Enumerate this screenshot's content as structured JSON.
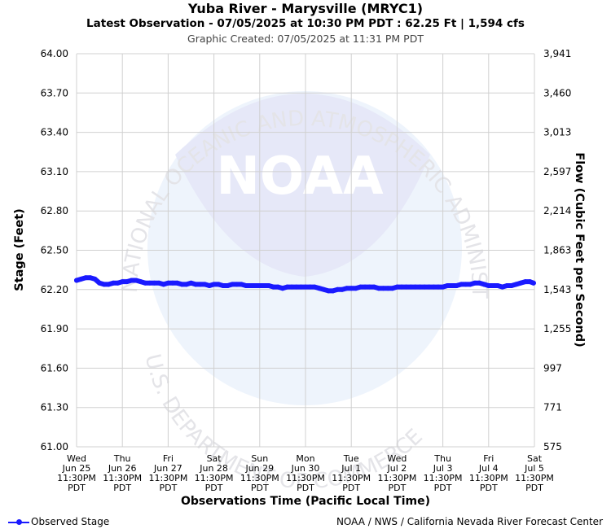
{
  "header": {
    "title": "Yuba River - Marysville (MRYC1)",
    "subtitle": "Latest Observation - 07/05/2025 at 10:30 PM PDT : 62.25 Ft | 1,594 cfs",
    "created": "Graphic Created: 07/05/2025 at 11:31 PM PDT"
  },
  "watermark": {
    "logo_text": "NOAA",
    "ring_top": "NATIONAL OCEANIC AND ATMOSPHERIC ADMINISTRATION",
    "ring_bottom": "U.S. DEPARTMENT OF COMMERCE"
  },
  "legend": {
    "label": "Observed Stage",
    "color": "#1a1aff"
  },
  "credit": "NOAA / NWS / California Nevada River Forecast Center",
  "chart_data": {
    "type": "line",
    "ylabel": "Stage (Feet)",
    "y2label": "Flow (Cubic Feet per Second)",
    "xlabel": "Observations Time (Pacific Local Time)",
    "ylim": [
      61.0,
      64.0
    ],
    "yticks": [
      "64.00",
      "63.70",
      "63.40",
      "63.10",
      "62.80",
      "62.50",
      "62.20",
      "61.90",
      "61.60",
      "61.30",
      "61.00"
    ],
    "y2ticks": [
      "3,941",
      "3,460",
      "3,013",
      "2,597",
      "2,214",
      "1,863",
      "1,543",
      "1,255",
      "997",
      "771",
      "575"
    ],
    "xticks": [
      [
        "Wed",
        "Jun 25",
        "11:30PM",
        "PDT"
      ],
      [
        "Thu",
        "Jun 26",
        "11:30PM",
        "PDT"
      ],
      [
        "Fri",
        "Jun 27",
        "11:30PM",
        "PDT"
      ],
      [
        "Sat",
        "Jun 28",
        "11:30PM",
        "PDT"
      ],
      [
        "Sun",
        "Jun 29",
        "11:30PM",
        "PDT"
      ],
      [
        "Mon",
        "Jun 30",
        "11:30PM",
        "PDT"
      ],
      [
        "Tue",
        "Jul 1",
        "11:30PM",
        "PDT"
      ],
      [
        "Wed",
        "Jul 2",
        "11:30PM",
        "PDT"
      ],
      [
        "Thu",
        "Jul 3",
        "11:30PM",
        "PDT"
      ],
      [
        "Fri",
        "Jul 4",
        "11:30PM",
        "PDT"
      ],
      [
        "Sat",
        "Jul 5",
        "11:30PM",
        "PDT"
      ]
    ],
    "grid": true,
    "series": [
      {
        "name": "Observed Stage",
        "color": "#1a1aff",
        "x": [
          0,
          0.1,
          0.2,
          0.3,
          0.4,
          0.5,
          0.6,
          0.7,
          0.8,
          0.9,
          1.0,
          1.1,
          1.2,
          1.3,
          1.4,
          1.5,
          1.6,
          1.7,
          1.8,
          1.9,
          2.0,
          2.1,
          2.2,
          2.3,
          2.4,
          2.5,
          2.6,
          2.7,
          2.8,
          2.9,
          3.0,
          3.1,
          3.2,
          3.3,
          3.4,
          3.5,
          3.6,
          3.7,
          3.8,
          3.9,
          4.0,
          4.1,
          4.2,
          4.3,
          4.4,
          4.5,
          4.6,
          4.7,
          4.8,
          4.9,
          5.0,
          5.1,
          5.2,
          5.3,
          5.4,
          5.5,
          5.6,
          5.7,
          5.8,
          5.9,
          6.0,
          6.1,
          6.2,
          6.3,
          6.4,
          6.5,
          6.6,
          6.7,
          6.8,
          6.9,
          7.0,
          7.1,
          7.2,
          7.3,
          7.4,
          7.5,
          7.6,
          7.7,
          7.8,
          7.9,
          8.0,
          8.1,
          8.2,
          8.3,
          8.4,
          8.5,
          8.6,
          8.7,
          8.8,
          8.9,
          9.0,
          9.1,
          9.2,
          9.3,
          9.4,
          9.5,
          9.6,
          9.7,
          9.8,
          9.9,
          9.98
        ],
        "values": [
          62.27,
          62.28,
          62.29,
          62.29,
          62.28,
          62.25,
          62.24,
          62.24,
          62.25,
          62.25,
          62.26,
          62.26,
          62.27,
          62.27,
          62.26,
          62.25,
          62.25,
          62.25,
          62.25,
          62.24,
          62.25,
          62.25,
          62.25,
          62.24,
          62.24,
          62.25,
          62.24,
          62.24,
          62.24,
          62.23,
          62.24,
          62.24,
          62.23,
          62.23,
          62.24,
          62.24,
          62.24,
          62.23,
          62.23,
          62.23,
          62.23,
          62.23,
          62.23,
          62.22,
          62.22,
          62.21,
          62.22,
          62.22,
          62.22,
          62.22,
          62.22,
          62.22,
          62.22,
          62.21,
          62.2,
          62.19,
          62.19,
          62.2,
          62.2,
          62.21,
          62.21,
          62.21,
          62.22,
          62.22,
          62.22,
          62.22,
          62.21,
          62.21,
          62.21,
          62.21,
          62.22,
          62.22,
          62.22,
          62.22,
          62.22,
          62.22,
          62.22,
          62.22,
          62.22,
          62.22,
          62.22,
          62.23,
          62.23,
          62.23,
          62.24,
          62.24,
          62.24,
          62.25,
          62.25,
          62.24,
          62.23,
          62.23,
          62.23,
          62.22,
          62.23,
          62.23,
          62.24,
          62.25,
          62.26,
          62.26,
          62.25
        ]
      }
    ]
  }
}
